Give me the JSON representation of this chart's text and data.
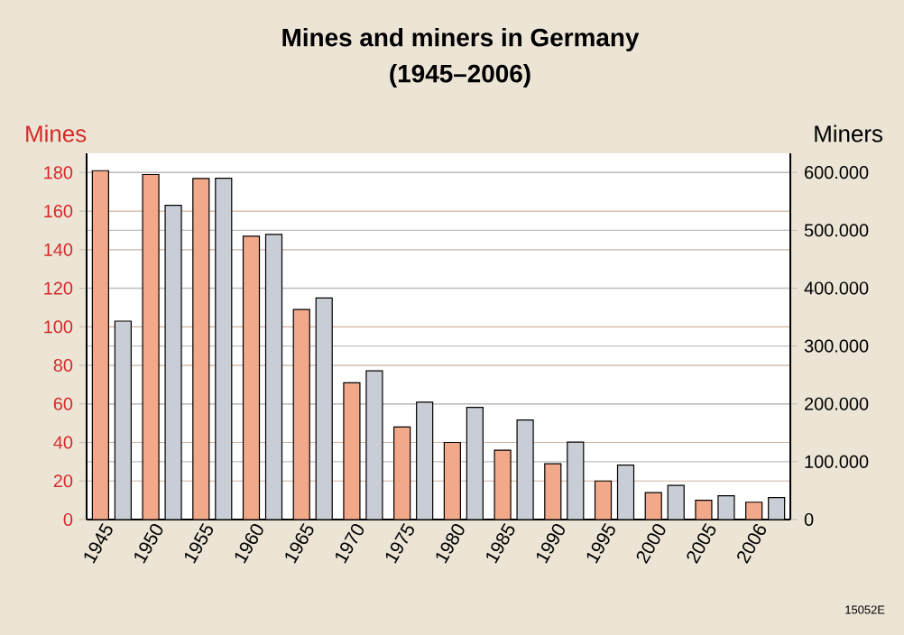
{
  "chart_data": {
    "type": "bar",
    "title": "Mines and miners in Germany",
    "subtitle": "(1945–2006)",
    "ylabel": "Mines",
    "y2label": "Miners",
    "categories": [
      "1945",
      "1950",
      "1955",
      "1960",
      "1965",
      "1970",
      "1975",
      "1980",
      "1985",
      "1990",
      "1995",
      "2000",
      "2005",
      "2006"
    ],
    "series": [
      {
        "color": "#f2a98a",
        "values": [
          181,
          179,
          177,
          147,
          109,
          71,
          48,
          40,
          36,
          29,
          20,
          14,
          10,
          9
        ]
      },
      {
        "color": "#c9cdd5",
        "axis": "y2",
        "values": [
          343000,
          543000,
          590000,
          493000,
          383000,
          257000,
          203000,
          194000,
          172000,
          134000,
          94000,
          59000,
          41000,
          38000
        ]
      }
    ],
    "ylim": [
      0,
      190
    ],
    "yticks": [
      0,
      20,
      40,
      60,
      80,
      100,
      120,
      140,
      160,
      180
    ],
    "y2lim": [
      0,
      633000
    ],
    "y2ticks": [
      0,
      {
        "value": 100000,
        "label": "100.000"
      },
      {
        "value": 200000,
        "label": "200.000"
      },
      {
        "value": 300000,
        "label": "300.000"
      },
      {
        "value": 400000,
        "label": "400.000"
      },
      {
        "value": 500000,
        "label": "500.000"
      },
      {
        "value": 600000,
        "label": "600.000"
      }
    ],
    "grid": true,
    "annotations": [
      "15052E"
    ]
  }
}
